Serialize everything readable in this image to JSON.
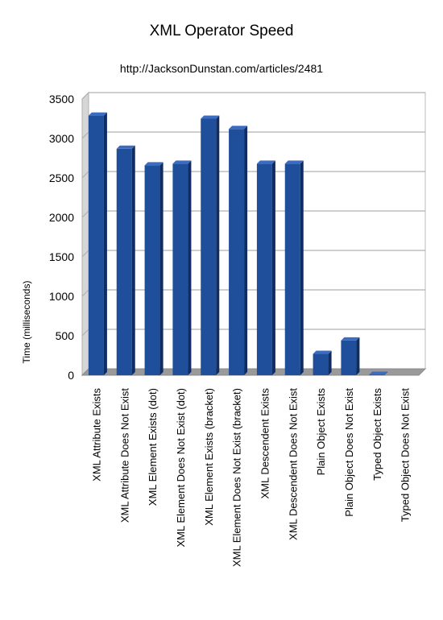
{
  "chart_data": {
    "type": "bar",
    "title": "XML Operator Speed",
    "subtitle": "http://JacksonDunstan.com/articles/2481",
    "xlabel": "",
    "ylabel": "Time (milliseconds)",
    "ylim": [
      0,
      3500
    ],
    "yticks": [
      0,
      500,
      1000,
      1500,
      2000,
      2500,
      3000,
      3500
    ],
    "grid": true,
    "legend": "none",
    "bar_color": "#1f4e9a",
    "bar_side_color": "#0f2d63",
    "bar_top_color": "#3c6cc0",
    "categories": [
      "XML Attribute Exists",
      "XML Attribute Does Not Exist",
      "XML Element Exists (dot)",
      "XML Element Does Not Exist (dot)",
      "XML Element Exists (bracket)",
      "XML Element Does Not Exist (bracket)",
      "XML Descendent Exists",
      "XML Descendent Does Not Exist",
      "Plain Object Exists",
      "Plain Object Does Not Exist",
      "Typed Object Exists",
      "Typed Object Does Not Exist"
    ],
    "values": [
      3290,
      2870,
      2660,
      2680,
      3250,
      3120,
      2680,
      2680,
      270,
      440,
      5,
      0
    ]
  }
}
